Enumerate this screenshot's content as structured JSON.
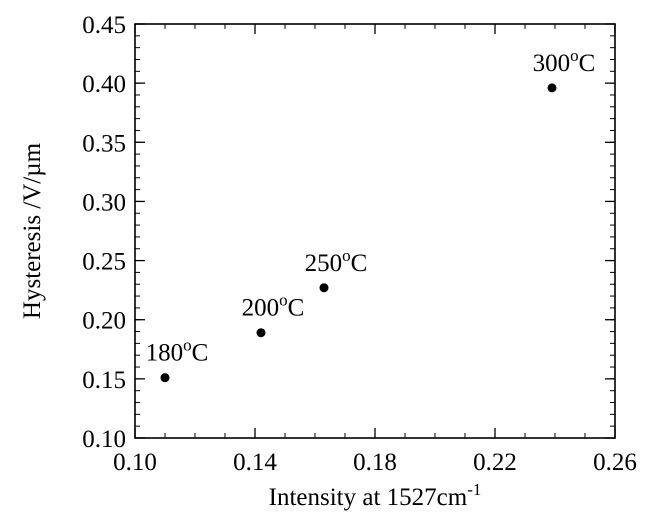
{
  "chart_data": {
    "type": "scatter",
    "xlabel": "Intensity at 1527cm",
    "xlabel_sup": "-1",
    "ylabel": "Hysteresis /V/µm",
    "xlim": [
      0.1,
      0.26
    ],
    "ylim": [
      0.1,
      0.45
    ],
    "x_ticks": [
      "0.10",
      "0.14",
      "0.18",
      "0.22",
      "0.26"
    ],
    "y_ticks": [
      "0.10",
      "0.15",
      "0.20",
      "0.25",
      "0.30",
      "0.35",
      "0.40",
      "0.45"
    ],
    "x_tick_values": [
      0.1,
      0.14,
      0.18,
      0.22,
      0.26
    ],
    "y_tick_values": [
      0.1,
      0.15,
      0.2,
      0.25,
      0.3,
      0.35,
      0.4,
      0.45
    ],
    "x_minor_step": 0.01,
    "y_minor_step": 0.01,
    "grid": false,
    "marker_color": "#000000",
    "points": [
      {
        "x": 0.11,
        "y": 0.151,
        "label": "180",
        "label_sup": "o",
        "label_unit": "C"
      },
      {
        "x": 0.142,
        "y": 0.189,
        "label": "200",
        "label_sup": "o",
        "label_unit": "C"
      },
      {
        "x": 0.163,
        "y": 0.227,
        "label": "250",
        "label_sup": "o",
        "label_unit": "C"
      },
      {
        "x": 0.239,
        "y": 0.396,
        "label": "300",
        "label_sup": "o",
        "label_unit": "C"
      }
    ]
  }
}
